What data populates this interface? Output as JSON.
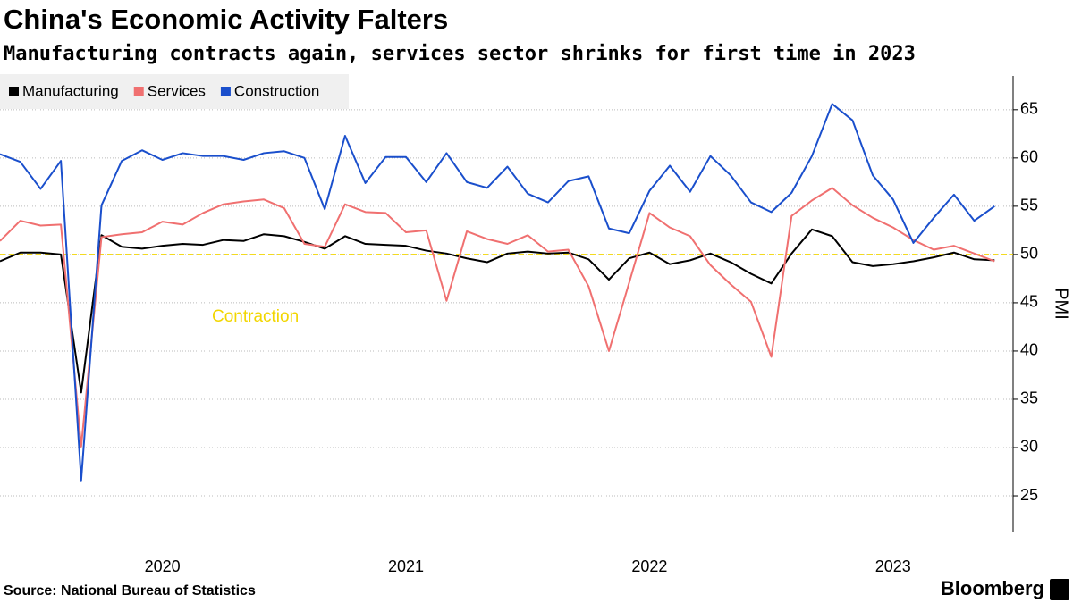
{
  "chart_data": {
    "type": "line",
    "title": "China's Economic Activity Falters",
    "subtitle": "Manufacturing contracts again, services sector shrinks for first time in 2023",
    "y_label": "PMI",
    "source": "Source: National Bureau of Statistics",
    "brand": "Bloomberg",
    "annotation": "Contraction",
    "threshold": 50,
    "x": [
      "2019-10",
      "2019-11",
      "2019-12",
      "2020-01",
      "2020-02",
      "2020-03",
      "2020-04",
      "2020-05",
      "2020-06",
      "2020-07",
      "2020-08",
      "2020-09",
      "2020-10",
      "2020-11",
      "2020-12",
      "2021-01",
      "2021-02",
      "2021-03",
      "2021-04",
      "2021-05",
      "2021-06",
      "2021-07",
      "2021-08",
      "2021-09",
      "2021-10",
      "2021-11",
      "2021-12",
      "2022-01",
      "2022-02",
      "2022-03",
      "2022-04",
      "2022-05",
      "2022-06",
      "2022-07",
      "2022-08",
      "2022-09",
      "2022-10",
      "2022-11",
      "2022-12",
      "2023-01",
      "2023-02",
      "2023-03",
      "2023-04",
      "2023-05",
      "2023-06",
      "2023-07",
      "2023-08",
      "2023-09",
      "2023-10",
      "2023-11"
    ],
    "series": [
      {
        "name": "Manufacturing",
        "color": "#000000",
        "values": [
          49.3,
          50.2,
          50.2,
          50.0,
          35.7,
          52.0,
          50.8,
          50.6,
          50.9,
          51.1,
          51.0,
          51.5,
          51.4,
          52.1,
          51.9,
          51.3,
          50.6,
          51.9,
          51.1,
          51.0,
          50.9,
          50.4,
          50.1,
          49.6,
          49.2,
          50.1,
          50.3,
          50.1,
          50.2,
          49.5,
          47.4,
          49.6,
          50.2,
          49.0,
          49.4,
          50.1,
          49.2,
          48.0,
          47.0,
          50.1,
          52.6,
          51.9,
          49.2,
          48.8,
          49.0,
          49.3,
          49.7,
          50.2,
          49.5,
          49.4
        ]
      },
      {
        "name": "Services",
        "color": "#f07070",
        "values": [
          51.4,
          53.5,
          53.0,
          53.1,
          30.1,
          51.8,
          52.1,
          52.3,
          53.4,
          53.1,
          54.3,
          55.2,
          55.5,
          55.7,
          54.8,
          51.1,
          50.8,
          55.2,
          54.4,
          54.3,
          52.3,
          52.5,
          45.2,
          52.4,
          51.6,
          51.1,
          52.0,
          50.3,
          50.5,
          46.7,
          40.0,
          47.1,
          54.3,
          52.8,
          51.9,
          48.9,
          46.9,
          45.1,
          39.4,
          54.0,
          55.6,
          56.9,
          55.1,
          53.8,
          52.8,
          51.5,
          50.5,
          50.9,
          50.1,
          49.3
        ]
      },
      {
        "name": "Construction",
        "color": "#1a4fcc",
        "values": [
          60.4,
          59.6,
          56.8,
          59.7,
          26.6,
          55.1,
          59.7,
          60.8,
          59.8,
          60.5,
          60.2,
          60.2,
          59.8,
          60.5,
          60.7,
          60.0,
          54.7,
          62.3,
          57.4,
          60.1,
          60.1,
          57.5,
          60.5,
          57.5,
          56.9,
          59.1,
          56.3,
          55.4,
          57.6,
          58.1,
          52.7,
          52.2,
          56.6,
          59.2,
          56.5,
          60.2,
          58.2,
          55.4,
          54.4,
          56.4,
          60.2,
          65.6,
          63.9,
          58.2,
          55.7,
          51.2,
          53.8,
          56.2,
          53.5,
          55.0
        ]
      }
    ],
    "xticks": [
      {
        "value": "2020-06",
        "label": "2020"
      },
      {
        "value": "2021-06",
        "label": "2021"
      },
      {
        "value": "2022-06",
        "label": "2022"
      },
      {
        "value": "2023-06",
        "label": "2023"
      }
    ],
    "ylim": [
      21.3,
      68.5
    ],
    "yticks": [
      25,
      30,
      35,
      40,
      45,
      50,
      55,
      60,
      65
    ],
    "grid": true,
    "threshold_color": "#f2d600"
  }
}
